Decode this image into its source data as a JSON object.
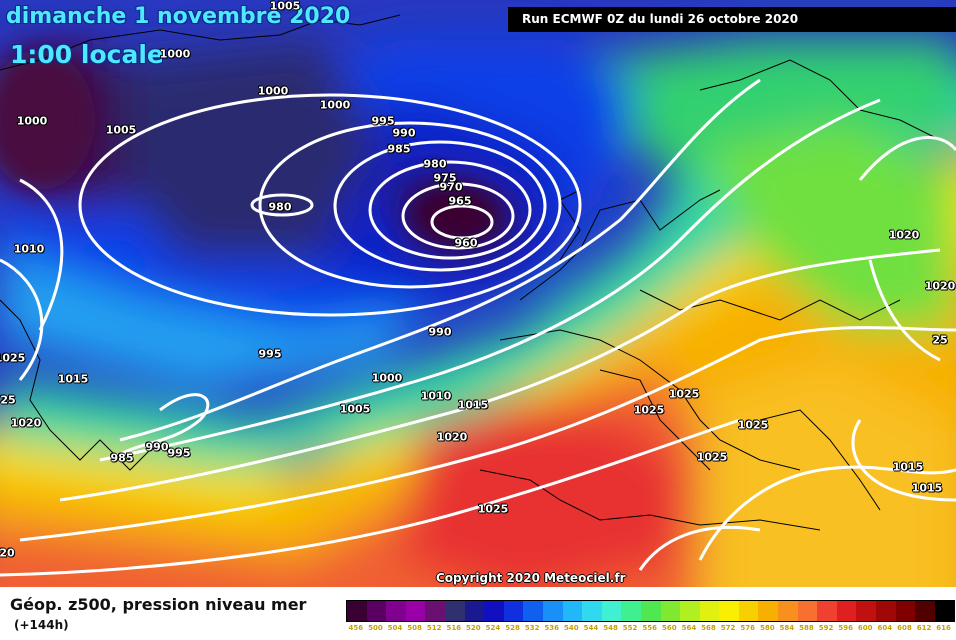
{
  "map": {
    "title_date": "dimanche 1 novembre 2020",
    "title_time": "1:00 locale",
    "run_info": "Run ECMWF 0Z du lundi 26 octobre 2020",
    "copyright": "Copyright 2020 Meteociel.fr",
    "pressure_labels": [
      {
        "text": "1005"
      },
      {
        "text": "1000"
      },
      {
        "text": "1000"
      },
      {
        "text": "1000"
      },
      {
        "text": "1005"
      },
      {
        "text": "1000"
      },
      {
        "text": "995"
      },
      {
        "text": "990"
      },
      {
        "text": "985"
      },
      {
        "text": "980"
      },
      {
        "text": "975"
      },
      {
        "text": "970"
      },
      {
        "text": "965"
      },
      {
        "text": "960"
      },
      {
        "text": "980"
      },
      {
        "text": "1010"
      },
      {
        "text": "990"
      },
      {
        "text": "995"
      },
      {
        "text": "1000"
      },
      {
        "text": "1005"
      },
      {
        "text": "1010"
      },
      {
        "text": "1015"
      },
      {
        "text": "1015"
      },
      {
        "text": "1020"
      },
      {
        "text": "1020"
      },
      {
        "text": "990"
      },
      {
        "text": "995"
      },
      {
        "text": "985"
      },
      {
        "text": "1025"
      },
      {
        "text": "1025"
      },
      {
        "text": "1025"
      },
      {
        "text": "1025"
      },
      {
        "text": "1025"
      },
      {
        "text": "1020"
      },
      {
        "text": "1020"
      },
      {
        "text": "1015"
      },
      {
        "text": "1015"
      },
      {
        "text": "1025"
      },
      {
        "text": "25"
      },
      {
        "text": "25"
      },
      {
        "text": "20"
      }
    ]
  },
  "legend": {
    "title": "Géop. z500, pression niveau mer",
    "subtitle": "(+144h)",
    "ticks": [
      "456",
      "500",
      "504",
      "508",
      "512",
      "516",
      "520",
      "524",
      "528",
      "532",
      "536",
      "540",
      "544",
      "548",
      "552",
      "556",
      "560",
      "564",
      "568",
      "572",
      "576",
      "580",
      "584",
      "588",
      "592",
      "596",
      "600",
      "604",
      "608",
      "612",
      "616"
    ],
    "colors": [
      "#3a0033",
      "#5a0060",
      "#800090",
      "#9a00a8",
      "#6a1070",
      "#303070",
      "#1a1a90",
      "#1010c0",
      "#1030e0",
      "#1060f0",
      "#1890f8",
      "#20b8f8",
      "#30d8f0",
      "#40f0d0",
      "#40f090",
      "#50e850",
      "#80e830",
      "#b0f020",
      "#e0f010",
      "#f8f000",
      "#f8d000",
      "#f8b000",
      "#f89020",
      "#f87030",
      "#f04030",
      "#e02020",
      "#c01010",
      "#a00808",
      "#800000",
      "#500000",
      "#000000"
    ]
  }
}
